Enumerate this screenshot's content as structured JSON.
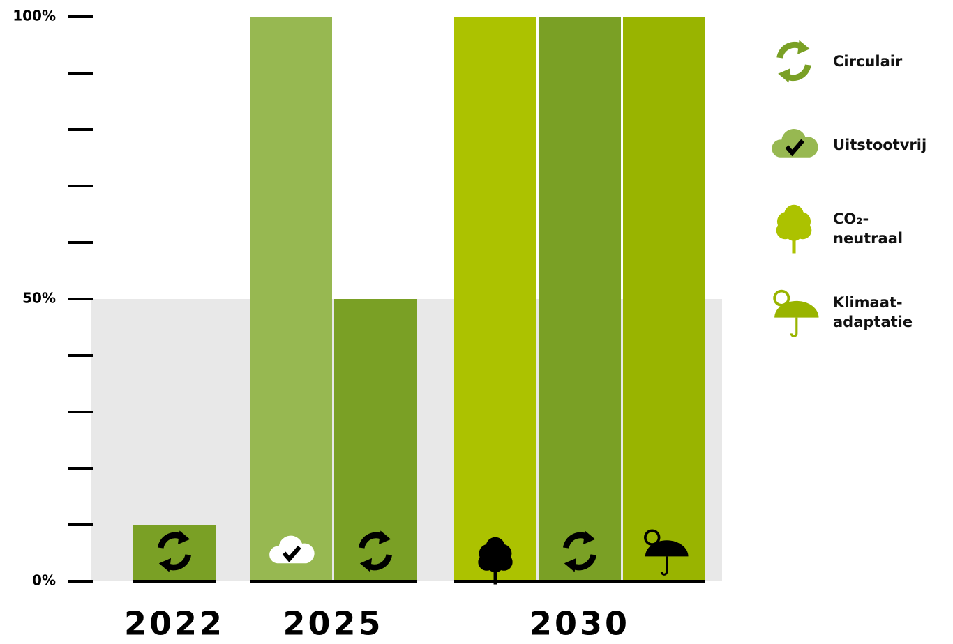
{
  "chart_data": {
    "type": "bar",
    "categories": [
      "2022",
      "2025",
      "2030"
    ],
    "series": [
      {
        "name": "Uitstootvrij",
        "color": "#97b851",
        "values": [
          null,
          100,
          null
        ]
      },
      {
        "name": "CO₂-neutraal",
        "color": "#acc200",
        "values": [
          null,
          null,
          100
        ]
      },
      {
        "name": "Circulair",
        "color": "#7aa025",
        "values": [
          10,
          50,
          100
        ]
      },
      {
        "name": "Klimaat-adaptatie",
        "color": "#99b400",
        "values": [
          null,
          null,
          100
        ]
      }
    ],
    "ylim": [
      0,
      100
    ],
    "yticks": [
      {
        "value": 0,
        "label": "0%"
      },
      {
        "value": 50,
        "label": "50%"
      },
      {
        "value": 100,
        "label": "100%"
      }
    ],
    "minor_yticks": [
      10,
      20,
      30,
      40,
      60,
      70,
      80,
      90
    ],
    "shaded_range": [
      0,
      50
    ]
  }
}
